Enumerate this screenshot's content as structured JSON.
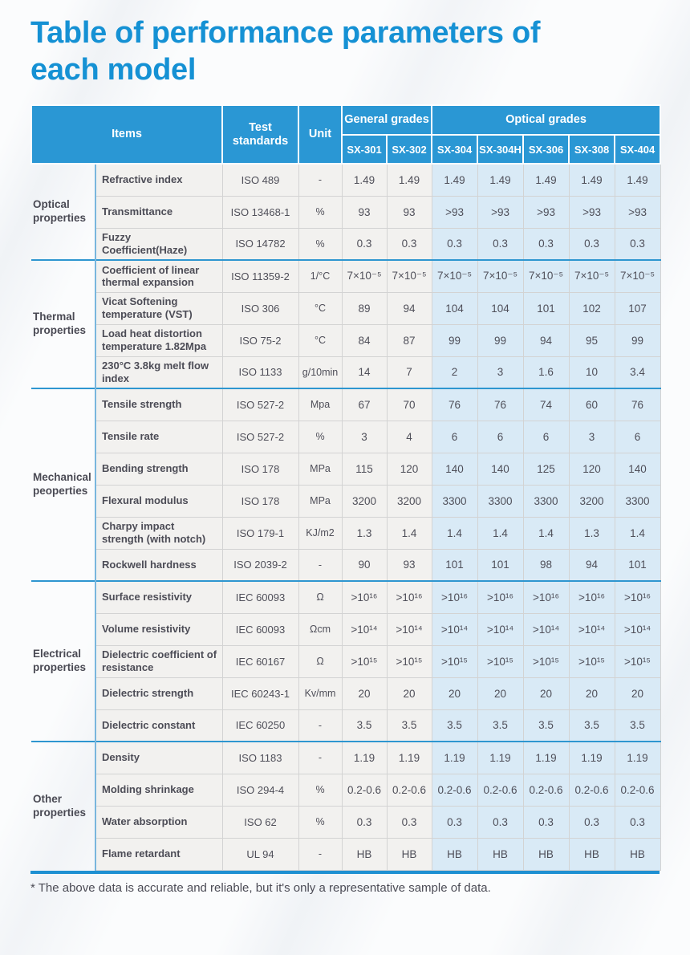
{
  "page": {
    "title": "Table of performance parameters of each model",
    "title_lines": [
      "Table of performance parameters of",
      "each model"
    ],
    "footnote": "* The above data is accurate and reliable, but it's only a representative sample of data."
  },
  "colors": {
    "title_blue": "#1591d4",
    "header_blue": "#2a97d4",
    "optical_cell_blue": "#d9eaf6",
    "general_cell_gray": "#f2f1ef",
    "section_divider_blue": "#2e96d0",
    "category_border_blue": "#79b6dd",
    "table_bottom_blue": "#1e90d2",
    "body_text": "#4f4f59"
  },
  "table": {
    "header": {
      "items_label": "Items",
      "test_standards_label": "Test standards",
      "unit_label": "Unit",
      "groups": [
        {
          "label": "General grades",
          "models": [
            "SX-301",
            "SX-302"
          ]
        },
        {
          "label": "Optical grades",
          "models": [
            "SX-304",
            "SX-304H",
            "SX-306",
            "SX-308",
            "SX-404"
          ]
        }
      ]
    },
    "sections": [
      {
        "category": "Optical properties",
        "rows": [
          {
            "item": "Refractive index",
            "standard": "ISO 489",
            "unit": "-",
            "values": [
              "1.49",
              "1.49",
              "1.49",
              "1.49",
              "1.49",
              "1.49",
              "1.49"
            ]
          },
          {
            "item": "Transmittance",
            "standard": "ISO 13468-1",
            "unit": "%",
            "values": [
              "93",
              "93",
              ">93",
              ">93",
              ">93",
              ">93",
              ">93"
            ]
          },
          {
            "item": "Fuzzy Coefficient(Haze)",
            "standard": "ISO 14782",
            "unit": "%",
            "values": [
              "0.3",
              "0.3",
              "0.3",
              "0.3",
              "0.3",
              "0.3",
              "0.3"
            ]
          }
        ]
      },
      {
        "category": "Thermal properties",
        "rows": [
          {
            "item": "Coefficient of linear thermal expansion",
            "standard": "ISO 11359-2",
            "unit": "1/°C",
            "values": [
              "7×10⁻⁵",
              "7×10⁻⁵",
              "7×10⁻⁵",
              "7×10⁻⁵",
              "7×10⁻⁵",
              "7×10⁻⁵",
              "7×10⁻⁵"
            ]
          },
          {
            "item": "Vicat Softening temperature (VST)",
            "standard": "ISO 306",
            "unit": "°C",
            "values": [
              "89",
              "94",
              "104",
              "104",
              "101",
              "102",
              "107"
            ]
          },
          {
            "item": "Load heat distortion temperature 1.82Mpa",
            "standard": "ISO 75-2",
            "unit": "°C",
            "values": [
              "84",
              "87",
              "99",
              "99",
              "94",
              "95",
              "99"
            ]
          },
          {
            "item": "230°C 3.8kg melt flow index",
            "standard": "ISO 1133",
            "unit": "g/10min",
            "values": [
              "14",
              "7",
              "2",
              "3",
              "1.6",
              "10",
              "3.4"
            ]
          }
        ]
      },
      {
        "category": "Mechanical peoperties",
        "rows": [
          {
            "item": "Tensile strength",
            "standard": "ISO 527-2",
            "unit": "Mpa",
            "values": [
              "67",
              "70",
              "76",
              "76",
              "74",
              "60",
              "76"
            ]
          },
          {
            "item": "Tensile rate",
            "standard": "ISO 527-2",
            "unit": "%",
            "values": [
              "3",
              "4",
              "6",
              "6",
              "6",
              "3",
              "6"
            ]
          },
          {
            "item": "Bending strength",
            "standard": "ISO 178",
            "unit": "MPa",
            "values": [
              "115",
              "120",
              "140",
              "140",
              "125",
              "120",
              "140"
            ]
          },
          {
            "item": "Flexural modulus",
            "standard": "ISO 178",
            "unit": "MPa",
            "values": [
              "3200",
              "3200",
              "3300",
              "3300",
              "3300",
              "3200",
              "3300"
            ]
          },
          {
            "item": "Charpy impact strength (with notch)",
            "standard": "ISO 179-1",
            "unit": "KJ/m2",
            "values": [
              "1.3",
              "1.4",
              "1.4",
              "1.4",
              "1.4",
              "1.3",
              "1.4"
            ]
          },
          {
            "item": "Rockwell hardness",
            "standard": "ISO 2039-2",
            "unit": "-",
            "values": [
              "90",
              "93",
              "101",
              "101",
              "98",
              "94",
              "101"
            ]
          }
        ]
      },
      {
        "category": "Electrical properties",
        "rows": [
          {
            "item": "Surface resistivity",
            "standard": "IEC 60093",
            "unit": "Ω",
            "values": [
              ">10¹⁶",
              ">10¹⁶",
              ">10¹⁶",
              ">10¹⁶",
              ">10¹⁶",
              ">10¹⁶",
              ">10¹⁶"
            ]
          },
          {
            "item": "Volume resistivity",
            "standard": "IEC 60093",
            "unit": "Ωcm",
            "values": [
              ">10¹⁴",
              ">10¹⁴",
              ">10¹⁴",
              ">10¹⁴",
              ">10¹⁴",
              ">10¹⁴",
              ">10¹⁴"
            ]
          },
          {
            "item": "Dielectric coefficient of resistance",
            "standard": "IEC 60167",
            "unit": "Ω",
            "values": [
              ">10¹⁵",
              ">10¹⁵",
              ">10¹⁵",
              ">10¹⁵",
              ">10¹⁵",
              ">10¹⁵",
              ">10¹⁵"
            ]
          },
          {
            "item": "Dielectric strength",
            "standard": "IEC 60243-1",
            "unit": "Kv/mm",
            "values": [
              "20",
              "20",
              "20",
              "20",
              "20",
              "20",
              "20"
            ]
          },
          {
            "item": "Dielectric constant",
            "standard": "IEC 60250",
            "unit": "-",
            "values": [
              "3.5",
              "3.5",
              "3.5",
              "3.5",
              "3.5",
              "3.5",
              "3.5"
            ]
          }
        ]
      },
      {
        "category": "Other properties",
        "rows": [
          {
            "item": "Density",
            "standard": "ISO 1183",
            "unit": "-",
            "values": [
              "1.19",
              "1.19",
              "1.19",
              "1.19",
              "1.19",
              "1.19",
              "1.19"
            ]
          },
          {
            "item": "Molding shrinkage",
            "standard": "ISO 294-4",
            "unit": "%",
            "values": [
              "0.2-0.6",
              "0.2-0.6",
              "0.2-0.6",
              "0.2-0.6",
              "0.2-0.6",
              "0.2-0.6",
              "0.2-0.6"
            ]
          },
          {
            "item": "Water absorption",
            "standard": "ISO 62",
            "unit": "%",
            "values": [
              "0.3",
              "0.3",
              "0.3",
              "0.3",
              "0.3",
              "0.3",
              "0.3"
            ]
          },
          {
            "item": "Flame retardant",
            "standard": "UL 94",
            "unit": "-",
            "values": [
              "HB",
              "HB",
              "HB",
              "HB",
              "HB",
              "HB",
              "HB"
            ]
          }
        ]
      }
    ]
  }
}
